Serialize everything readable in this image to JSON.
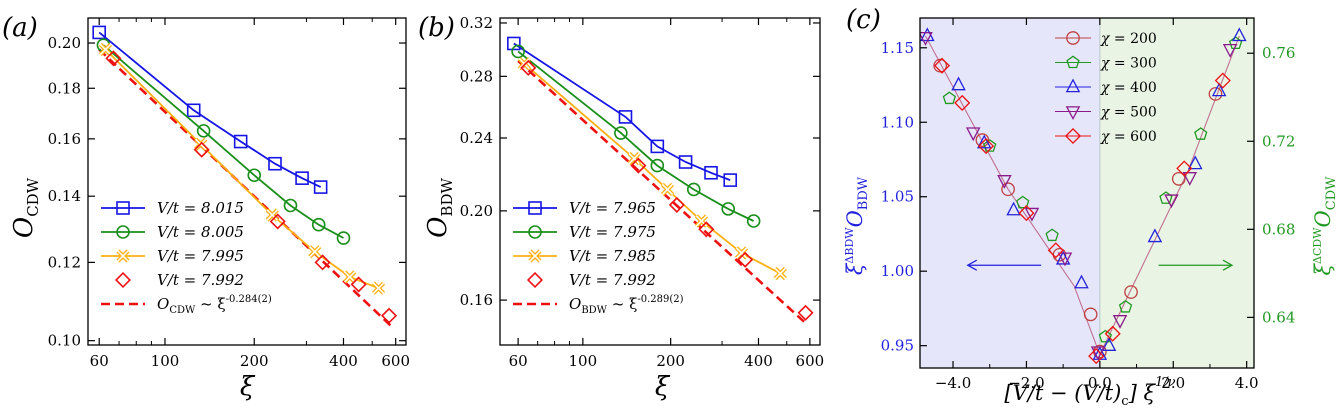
{
  "chart_data": [
    {
      "type": "line",
      "scale": "log-log",
      "panel_label": "(a)",
      "xlabel": "ξ",
      "ylabel": "O",
      "ylabel_sub": "CDW",
      "xlim": [
        55,
        650
      ],
      "ylim": [
        0.099,
        0.212
      ],
      "x_ticks": [
        60,
        100,
        200,
        400,
        600
      ],
      "y_ticks": [
        0.1,
        0.12,
        0.14,
        0.16,
        0.18,
        0.2
      ],
      "y_tick_labels": [
        "0.10",
        "0.12",
        "0.14",
        "0.16",
        "0.18",
        "0.20"
      ],
      "legend_position": "bottom-left",
      "series": [
        {
          "name": "V/t = 8.015",
          "color": "#1515e6",
          "marker": "square",
          "x": [
            60,
            125,
            180,
            235,
            290,
            335
          ],
          "y": [
            0.205,
            0.171,
            0.159,
            0.151,
            0.146,
            0.143
          ]
        },
        {
          "name": "V/t = 8.005",
          "color": "#1a8f1a",
          "marker": "circle",
          "x": [
            62,
            135,
            200,
            265,
            330,
            400
          ],
          "y": [
            0.199,
            0.163,
            0.147,
            0.137,
            0.131,
            0.127
          ]
        },
        {
          "name": "V/t = 7.995",
          "color": "#ffb011",
          "marker": "x",
          "x": [
            63,
            132,
            230,
            320,
            420,
            525
          ],
          "y": [
            0.197,
            0.158,
            0.134,
            0.123,
            0.116,
            0.113
          ]
        },
        {
          "name": "V/t = 7.992",
          "color": "#ee1111",
          "marker": "diamond",
          "x": [
            67,
            133,
            240,
            340,
            450,
            570
          ],
          "y": [
            0.193,
            0.156,
            0.132,
            0.12,
            0.114,
            0.106
          ]
        }
      ],
      "fit": {
        "label": "O_CDW ~ ξ^{-0.284(2)}",
        "color": "#ee1111",
        "exponent": -0.284,
        "x_range": [
          60,
          590
        ],
        "y_at_start": 0.197
      }
    },
    {
      "type": "line",
      "scale": "log-log",
      "panel_label": "(b)",
      "xlabel": "ξ",
      "ylabel": "O",
      "ylabel_sub": "BDW",
      "xlim": [
        52,
        650
      ],
      "ylim": [
        0.143,
        0.324
      ],
      "x_ticks": [
        60,
        100,
        200,
        400,
        600
      ],
      "y_ticks": [
        0.16,
        0.2,
        0.24,
        0.28,
        0.32
      ],
      "y_tick_labels": [
        "0.16",
        "0.20",
        "0.24",
        "0.28",
        "0.32"
      ],
      "legend_position": "bottom-left",
      "series": [
        {
          "name": "V/t = 7.965",
          "color": "#1515e6",
          "marker": "square",
          "x": [
            58,
            140,
            180,
            225,
            275,
            320
          ],
          "y": [
            0.304,
            0.253,
            0.235,
            0.226,
            0.22,
            0.216
          ]
        },
        {
          "name": "V/t = 7.975",
          "color": "#1a8f1a",
          "marker": "circle",
          "x": [
            60,
            135,
            180,
            240,
            315,
            385
          ],
          "y": [
            0.298,
            0.243,
            0.224,
            0.211,
            0.201,
            0.195
          ]
        },
        {
          "name": "V/t = 7.985",
          "color": "#ffb011",
          "marker": "x",
          "x": [
            63,
            150,
            195,
            255,
            350,
            475
          ],
          "y": [
            0.289,
            0.228,
            0.211,
            0.195,
            0.18,
            0.171
          ]
        },
        {
          "name": "V/t = 7.992",
          "color": "#ee1111",
          "marker": "diamond",
          "x": [
            65,
            155,
            210,
            265,
            360,
            580
          ],
          "y": [
            0.286,
            0.224,
            0.203,
            0.191,
            0.177,
            0.155
          ]
        }
      ],
      "fit": {
        "label": "O_BDW ~ ξ^{-0.289(2)}",
        "color": "#ee1111",
        "exponent": -0.289,
        "x_range": [
          60,
          590
        ],
        "y_at_start": 0.291
      }
    },
    {
      "type": "scatter",
      "panel_label": "(c)",
      "xlabel": "[V/t − (V/t)c] ξ^{1/ν}",
      "ylabel_left": "ξ^{ΔBDW} O_BDW",
      "ylabel_right": "ξ^{ΔCDW} O_CDW",
      "xlim": [
        -4.9,
        4.2
      ],
      "ylim_left": [
        0.935,
        1.17
      ],
      "ylim_right": [
        0.617,
        0.776
      ],
      "x_ticks": [
        -4.0,
        -2.0,
        0.0,
        2.0,
        4.0
      ],
      "x_tick_labels": [
        "−4.0",
        "−2.0",
        "0.0",
        "2.0",
        "4.0"
      ],
      "y_ticks_left": [
        0.95,
        1.0,
        1.05,
        1.1,
        1.15
      ],
      "y_tick_labels_left": [
        "0.95",
        "1.00",
        "1.05",
        "1.10",
        "1.15"
      ],
      "y_ticks_right": [
        0.64,
        0.68,
        0.72,
        0.76
      ],
      "y_tick_labels_right": [
        "0.64",
        "0.68",
        "0.72",
        "0.76"
      ],
      "left_axis_color": "#2222dd",
      "right_axis_color": "#229922",
      "left_region_color": "#e6e6fb",
      "right_region_color": "#e9f4e5",
      "legend_position": "top-right",
      "series": [
        {
          "name": "χ = 200",
          "color": "#c04040",
          "marker": "circle",
          "x": [
            -4.35,
            -3.2,
            -2.5,
            -1.1,
            -0.25,
            0.0,
            0.85,
            2.15,
            3.15
          ],
          "y": [
            1.138,
            1.088,
            1.055,
            1.011,
            0.971,
            0.946,
            0.986,
            1.062,
            1.119
          ]
        },
        {
          "name": "χ = 300",
          "color": "#229922",
          "marker": "pentagon",
          "x": [
            -4.1,
            -3.0,
            -2.1,
            -1.3,
            0.15,
            0.7,
            1.8,
            2.75,
            3.7
          ],
          "y": [
            1.116,
            1.084,
            1.046,
            1.024,
            0.956,
            0.976,
            1.049,
            1.092,
            1.153
          ]
        },
        {
          "name": "χ = 400",
          "color": "#2222dd",
          "marker": "triangle",
          "x": [
            -4.7,
            -3.85,
            -3.15,
            -2.35,
            -1.0,
            -0.5,
            0.0,
            0.25,
            1.5,
            2.6,
            3.25,
            3.8
          ],
          "y": [
            1.158,
            1.125,
            1.086,
            1.041,
            1.008,
            0.992,
            0.944,
            0.95,
            1.023,
            1.072,
            1.121,
            1.158
          ]
        },
        {
          "name": "χ = 500",
          "color": "#8a1a8a",
          "marker": "triangle-down",
          "x": [
            -4.75,
            -3.45,
            -2.6,
            -1.85,
            -0.95,
            -0.05,
            0.55,
            1.95,
            2.45,
            3.55
          ],
          "y": [
            1.157,
            1.093,
            1.061,
            1.039,
            1.009,
            0.946,
            0.967,
            1.048,
            1.063,
            1.149
          ]
        },
        {
          "name": "χ = 600",
          "color": "#ee1111",
          "marker": "diamond",
          "x": [
            -4.3,
            -3.75,
            -3.1,
            -2.0,
            -1.2,
            -0.1,
            0.35,
            2.3,
            3.35
          ],
          "y": [
            1.138,
            1.113,
            1.084,
            1.039,
            1.014,
            0.943,
            0.958,
            1.069,
            1.128
          ]
        }
      ],
      "master_curve_color": "#c07090",
      "arrows": [
        {
          "direction": "left",
          "color": "#2222dd"
        },
        {
          "direction": "right",
          "color": "#229922"
        }
      ]
    }
  ]
}
